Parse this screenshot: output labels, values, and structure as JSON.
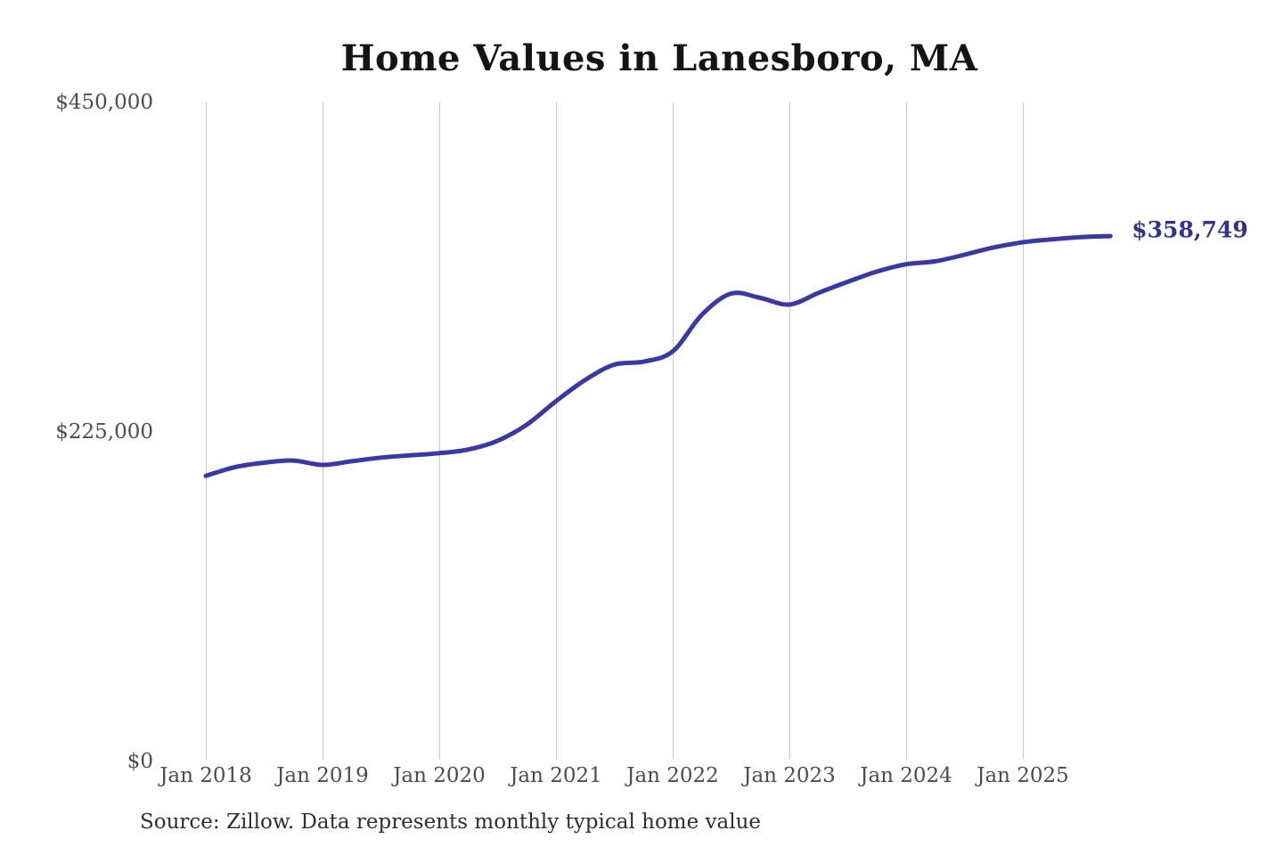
{
  "chart": {
    "title": "Home Values in Lanesboro, MA",
    "source_note": "Source: Zillow. Data represents monthly typical home value",
    "end_value_label": "$358,749",
    "colors": {
      "line": "#3a38a3",
      "end_label": "#32318b",
      "gridline": "#c9c9c9",
      "axis_text": "#4d4d4d",
      "title_text": "#141414",
      "source_text": "#2e2e2e",
      "background": "#ffffff"
    }
  },
  "chart_data": {
    "type": "line",
    "title": "Home Values in Lanesboro, MA",
    "xlabel": "",
    "ylabel": "",
    "ylim": [
      0,
      450000
    ],
    "grid": "vertical-only",
    "legend": "none",
    "annotation_final_value": 358749,
    "y_ticks": [
      {
        "label": "$450,000",
        "value": 450000
      },
      {
        "label": "$225,000",
        "value": 225000
      },
      {
        "label": "$0",
        "value": 0
      }
    ],
    "x_ticks": [
      {
        "label": "Jan 2018",
        "m": 0
      },
      {
        "label": "Jan 2019",
        "m": 12
      },
      {
        "label": "Jan 2020",
        "m": 24
      },
      {
        "label": "Jan 2021",
        "m": 36
      },
      {
        "label": "Jan 2022",
        "m": 48
      },
      {
        "label": "Jan 2023",
        "m": 60
      },
      {
        "label": "Jan 2024",
        "m": 72
      },
      {
        "label": "Jan 2025",
        "m": 84
      }
    ],
    "series": [
      {
        "name": "Monthly typical home value",
        "points": [
          {
            "label": "Jan 2018",
            "m": 0,
            "value": 195000
          },
          {
            "label": "Apr 2018",
            "m": 3,
            "value": 201000
          },
          {
            "label": "Jul 2018",
            "m": 6,
            "value": 204000
          },
          {
            "label": "Oct 2018",
            "m": 9,
            "value": 205500
          },
          {
            "label": "Jan 2019",
            "m": 12,
            "value": 202500
          },
          {
            "label": "Apr 2019",
            "m": 15,
            "value": 205000
          },
          {
            "label": "Jul 2019",
            "m": 18,
            "value": 207500
          },
          {
            "label": "Oct 2019",
            "m": 21,
            "value": 209000
          },
          {
            "label": "Jan 2020",
            "m": 24,
            "value": 210500
          },
          {
            "label": "Apr 2020",
            "m": 27,
            "value": 213000
          },
          {
            "label": "Jul 2020",
            "m": 30,
            "value": 219000
          },
          {
            "label": "Oct 2020",
            "m": 33,
            "value": 230000
          },
          {
            "label": "Jan 2021",
            "m": 36,
            "value": 246000
          },
          {
            "label": "Apr 2021",
            "m": 39,
            "value": 260500
          },
          {
            "label": "Jul 2021",
            "m": 42,
            "value": 271000
          },
          {
            "label": "Oct 2021",
            "m": 45,
            "value": 273000
          },
          {
            "label": "Jan 2022",
            "m": 48,
            "value": 280000
          },
          {
            "label": "Apr 2022",
            "m": 51,
            "value": 305000
          },
          {
            "label": "Jul 2022",
            "m": 54,
            "value": 319500
          },
          {
            "label": "Oct 2022",
            "m": 57,
            "value": 316500
          },
          {
            "label": "Jan 2023",
            "m": 60,
            "value": 312000
          },
          {
            "label": "Apr 2023",
            "m": 63,
            "value": 320000
          },
          {
            "label": "Jul 2023",
            "m": 66,
            "value": 327500
          },
          {
            "label": "Oct 2023",
            "m": 69,
            "value": 334500
          },
          {
            "label": "Jan 2024",
            "m": 72,
            "value": 339500
          },
          {
            "label": "Apr 2024",
            "m": 75,
            "value": 341500
          },
          {
            "label": "Jul 2024",
            "m": 78,
            "value": 346000
          },
          {
            "label": "Oct 2024",
            "m": 81,
            "value": 351000
          },
          {
            "label": "Jan 2025",
            "m": 84,
            "value": 354500
          },
          {
            "label": "Apr 2025",
            "m": 87,
            "value": 356500
          },
          {
            "label": "Jul 2025",
            "m": 90,
            "value": 358000
          },
          {
            "label": "Oct 2025",
            "m": 93,
            "value": 358749
          }
        ]
      }
    ]
  }
}
